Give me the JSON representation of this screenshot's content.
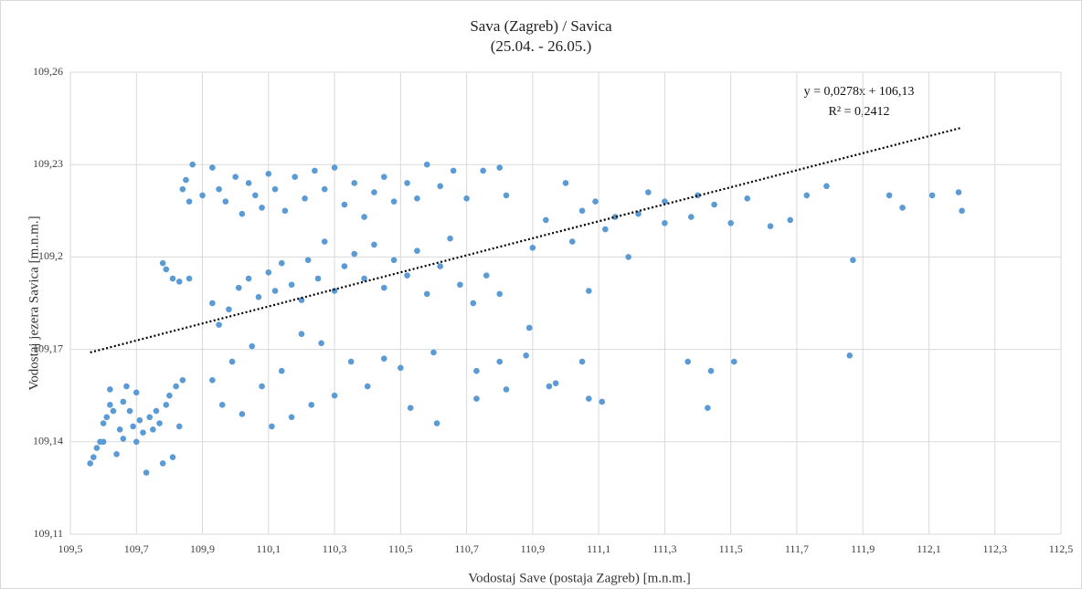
{
  "chart_data": {
    "type": "scatter",
    "title": "Sava (Zagreb) / Savica",
    "subtitle": "(25.04. - 26.05.)",
    "x_label": "Vodostaj Save (postaja Zagreb) [m.n.m.]",
    "y_label": "Vodostaj jezera Savica [m.n.m.]",
    "annotations": [
      "y = 0,0278x + 106,13",
      "R² = 0,2412"
    ],
    "color": "#5b9bd5",
    "grid": true,
    "xlim": [
      109.5,
      112.5
    ],
    "xticks": [
      {
        "value": 109.5,
        "label": "109,5"
      },
      {
        "value": 109.7,
        "label": "109,7"
      },
      {
        "value": 109.9,
        "label": "109,9"
      },
      {
        "value": 110.1,
        "label": "110,1"
      },
      {
        "value": 110.3,
        "label": "110,3"
      },
      {
        "value": 110.5,
        "label": "110,5"
      },
      {
        "value": 110.7,
        "label": "110,7"
      },
      {
        "value": 110.9,
        "label": "110,9"
      },
      {
        "value": 111.1,
        "label": "111,1"
      },
      {
        "value": 111.3,
        "label": "111,3"
      },
      {
        "value": 111.5,
        "label": "111,5"
      },
      {
        "value": 111.7,
        "label": "111,7"
      },
      {
        "value": 111.9,
        "label": "111,9"
      },
      {
        "value": 112.1,
        "label": "112,1"
      },
      {
        "value": 112.3,
        "label": "112,3"
      },
      {
        "value": 112.5,
        "label": "112,5"
      }
    ],
    "ylim": [
      109.11,
      109.26
    ],
    "yticks": [
      {
        "value": 109.11,
        "label": "109,11"
      },
      {
        "value": 109.14,
        "label": "109,14"
      },
      {
        "value": 109.17,
        "label": "109,17"
      },
      {
        "value": 109.2,
        "label": "109,2"
      },
      {
        "value": 109.23,
        "label": "109,23"
      },
      {
        "value": 109.26,
        "label": "109,26"
      }
    ],
    "trendline": {
      "x": [
        109.56,
        112.2
      ],
      "values": [
        109.169,
        109.242
      ]
    },
    "x": [
      109.56,
      109.57,
      109.58,
      109.59,
      109.6,
      109.61,
      109.62,
      109.63,
      109.64,
      109.65,
      109.66,
      109.67,
      109.68,
      109.69,
      109.7,
      109.71,
      109.72,
      109.73,
      109.74,
      109.75,
      109.76,
      109.77,
      109.78,
      109.79,
      109.8,
      109.81,
      109.82,
      109.83,
      109.84,
      109.6,
      109.66,
      109.7,
      109.62,
      109.78,
      109.79,
      109.81,
      109.83,
      109.86,
      109.85,
      109.87,
      109.86,
      109.84,
      109.9,
      109.93,
      109.95,
      109.97,
      110,
      110.02,
      110.04,
      110.06,
      110.08,
      110.1,
      110.12,
      110.15,
      110.18,
      110.21,
      110.24,
      110.27,
      110.3,
      110.33,
      110.36,
      110.39,
      110.42,
      110.45,
      110.48,
      110.52,
      110.55,
      110.58,
      110.62,
      110.66,
      110.7,
      110.75,
      110.8,
      110.82,
      109.93,
      109.95,
      109.98,
      110.01,
      110.04,
      110.07,
      110.1,
      110.12,
      110.14,
      110.17,
      110.2,
      110.22,
      110.25,
      110.27,
      110.3,
      110.33,
      110.36,
      110.39,
      110.42,
      110.45,
      110.48,
      110.52,
      110.55,
      110.58,
      110.62,
      110.65,
      110.68,
      110.72,
      110.76,
      110.8,
      109.93,
      109.96,
      109.99,
      110.02,
      110.05,
      110.08,
      110.11,
      110.14,
      110.17,
      110.2,
      110.23,
      110.26,
      110.3,
      110.35,
      110.4,
      110.45,
      110.5,
      110.53,
      110.6,
      110.61,
      110.73,
      110.73,
      110.8,
      110.82,
      110.88,
      110.95,
      110.97,
      111.05,
      111.07,
      111.11,
      110.9,
      110.94,
      111,
      111.02,
      111.05,
      111.07,
      111.09,
      111.12,
      111.15,
      111.19,
      111.22,
      111.25,
      111.3,
      111.3,
      111.38,
      111.4,
      111.45,
      111.5,
      111.55,
      111.62,
      111.68,
      111.73,
      111.79,
      111.98,
      112.02,
      112.11,
      112.19,
      112.2,
      111.87,
      111.86,
      111.43,
      111.51,
      111.37,
      111.44,
      110.89
    ],
    "values": [
      109.133,
      109.135,
      109.138,
      109.14,
      109.146,
      109.148,
      109.152,
      109.15,
      109.136,
      109.144,
      109.153,
      109.158,
      109.15,
      109.145,
      109.14,
      109.147,
      109.143,
      109.13,
      109.148,
      109.144,
      109.15,
      109.146,
      109.133,
      109.152,
      109.155,
      109.135,
      109.158,
      109.145,
      109.16,
      109.14,
      109.141,
      109.156,
      109.157,
      109.198,
      109.196,
      109.193,
      109.192,
      109.193,
      109.225,
      109.23,
      109.218,
      109.222,
      109.22,
      109.229,
      109.222,
      109.218,
      109.226,
      109.214,
      109.224,
      109.22,
      109.216,
      109.227,
      109.222,
      109.215,
      109.226,
      109.219,
      109.228,
      109.222,
      109.229,
      109.217,
      109.224,
      109.213,
      109.221,
      109.226,
      109.218,
      109.224,
      109.219,
      109.23,
      109.223,
      109.228,
      109.219,
      109.228,
      109.229,
      109.22,
      109.185,
      109.178,
      109.183,
      109.19,
      109.193,
      109.187,
      109.195,
      109.189,
      109.198,
      109.191,
      109.186,
      109.199,
      109.193,
      109.205,
      109.189,
      109.197,
      109.201,
      109.193,
      109.204,
      109.19,
      109.199,
      109.194,
      109.202,
      109.188,
      109.197,
      109.206,
      109.191,
      109.185,
      109.194,
      109.188,
      109.16,
      109.152,
      109.166,
      109.149,
      109.171,
      109.158,
      109.145,
      109.163,
      109.148,
      109.175,
      109.152,
      109.172,
      109.155,
      109.166,
      109.158,
      109.167,
      109.164,
      109.151,
      109.169,
      109.146,
      109.163,
      109.154,
      109.166,
      109.157,
      109.168,
      109.158,
      109.159,
      109.166,
      109.154,
      109.153,
      109.203,
      109.212,
      109.224,
      109.205,
      109.215,
      109.189,
      109.218,
      109.209,
      109.213,
      109.2,
      109.214,
      109.221,
      109.218,
      109.211,
      109.213,
      109.22,
      109.217,
      109.211,
      109.219,
      109.21,
      109.212,
      109.22,
      109.223,
      109.22,
      109.216,
      109.22,
      109.221,
      109.215,
      109.199,
      109.168,
      109.151,
      109.166,
      109.166,
      109.163,
      109.177
    ]
  }
}
